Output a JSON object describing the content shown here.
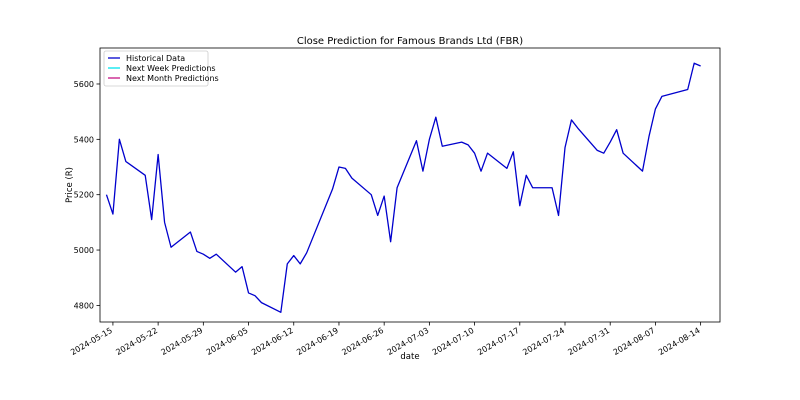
{
  "chart_data": {
    "type": "line",
    "title": "Close Prediction for Famous Brands Ltd (FBR)",
    "xlabel": "date",
    "ylabel": "Price (R)",
    "ylim": [
      4740,
      5730
    ],
    "xlim": [
      "2024-05-13",
      "2024-08-17"
    ],
    "x_ticks": [
      "2024-05-15",
      "2024-05-22",
      "2024-05-29",
      "2024-06-05",
      "2024-06-12",
      "2024-06-19",
      "2024-06-26",
      "2024-07-03",
      "2024-07-10",
      "2024-07-17",
      "2024-07-24",
      "2024-07-31",
      "2024-08-07",
      "2024-08-14"
    ],
    "y_ticks": [
      4800,
      5000,
      5200,
      5400,
      5600
    ],
    "grid": false,
    "legend_position": "top-left",
    "series": [
      {
        "name": "Historical Data",
        "color": "#0000cd",
        "x": [
          "2024-05-14",
          "2024-05-15",
          "2024-05-16",
          "2024-05-17",
          "2024-05-20",
          "2024-05-21",
          "2024-05-22",
          "2024-05-23",
          "2024-05-24",
          "2024-05-27",
          "2024-05-28",
          "2024-05-29",
          "2024-05-30",
          "2024-05-31",
          "2024-06-03",
          "2024-06-04",
          "2024-06-05",
          "2024-06-06",
          "2024-06-07",
          "2024-06-10",
          "2024-06-11",
          "2024-06-12",
          "2024-06-13",
          "2024-06-14",
          "2024-06-18",
          "2024-06-19",
          "2024-06-20",
          "2024-06-21",
          "2024-06-24",
          "2024-06-25",
          "2024-06-26",
          "2024-06-27",
          "2024-06-28",
          "2024-07-01",
          "2024-07-02",
          "2024-07-03",
          "2024-07-04",
          "2024-07-05",
          "2024-07-08",
          "2024-07-09",
          "2024-07-10",
          "2024-07-11",
          "2024-07-12",
          "2024-07-15",
          "2024-07-16",
          "2024-07-17",
          "2024-07-18",
          "2024-07-19",
          "2024-07-22",
          "2024-07-23",
          "2024-07-24",
          "2024-07-25",
          "2024-07-26",
          "2024-07-29",
          "2024-07-30",
          "2024-07-31",
          "2024-08-01",
          "2024-08-02",
          "2024-08-05",
          "2024-08-06",
          "2024-08-07",
          "2024-08-08",
          "2024-08-12",
          "2024-08-13",
          "2024-08-14"
        ],
        "values": [
          5200,
          5130,
          5400,
          5320,
          5270,
          5110,
          5345,
          5100,
          5010,
          5065,
          4995,
          4985,
          4970,
          4985,
          4920,
          4940,
          4845,
          4835,
          4810,
          4775,
          4950,
          4980,
          4950,
          4990,
          5220,
          5300,
          5295,
          5260,
          5200,
          5125,
          5195,
          5030,
          5225,
          5395,
          5285,
          5400,
          5480,
          5375,
          5390,
          5380,
          5350,
          5285,
          5350,
          5295,
          5355,
          5160,
          5270,
          5225,
          5225,
          5125,
          5370,
          5470,
          5440,
          5360,
          5350,
          5390,
          5435,
          5350,
          5285,
          5410,
          5510,
          5555,
          5580,
          5675,
          5665
        ]
      },
      {
        "name": "Next Week Predictions",
        "color": "#00e5ee",
        "x": [],
        "values": []
      },
      {
        "name": "Next Month Predictions",
        "color": "#c71585",
        "x": [],
        "values": []
      }
    ]
  }
}
